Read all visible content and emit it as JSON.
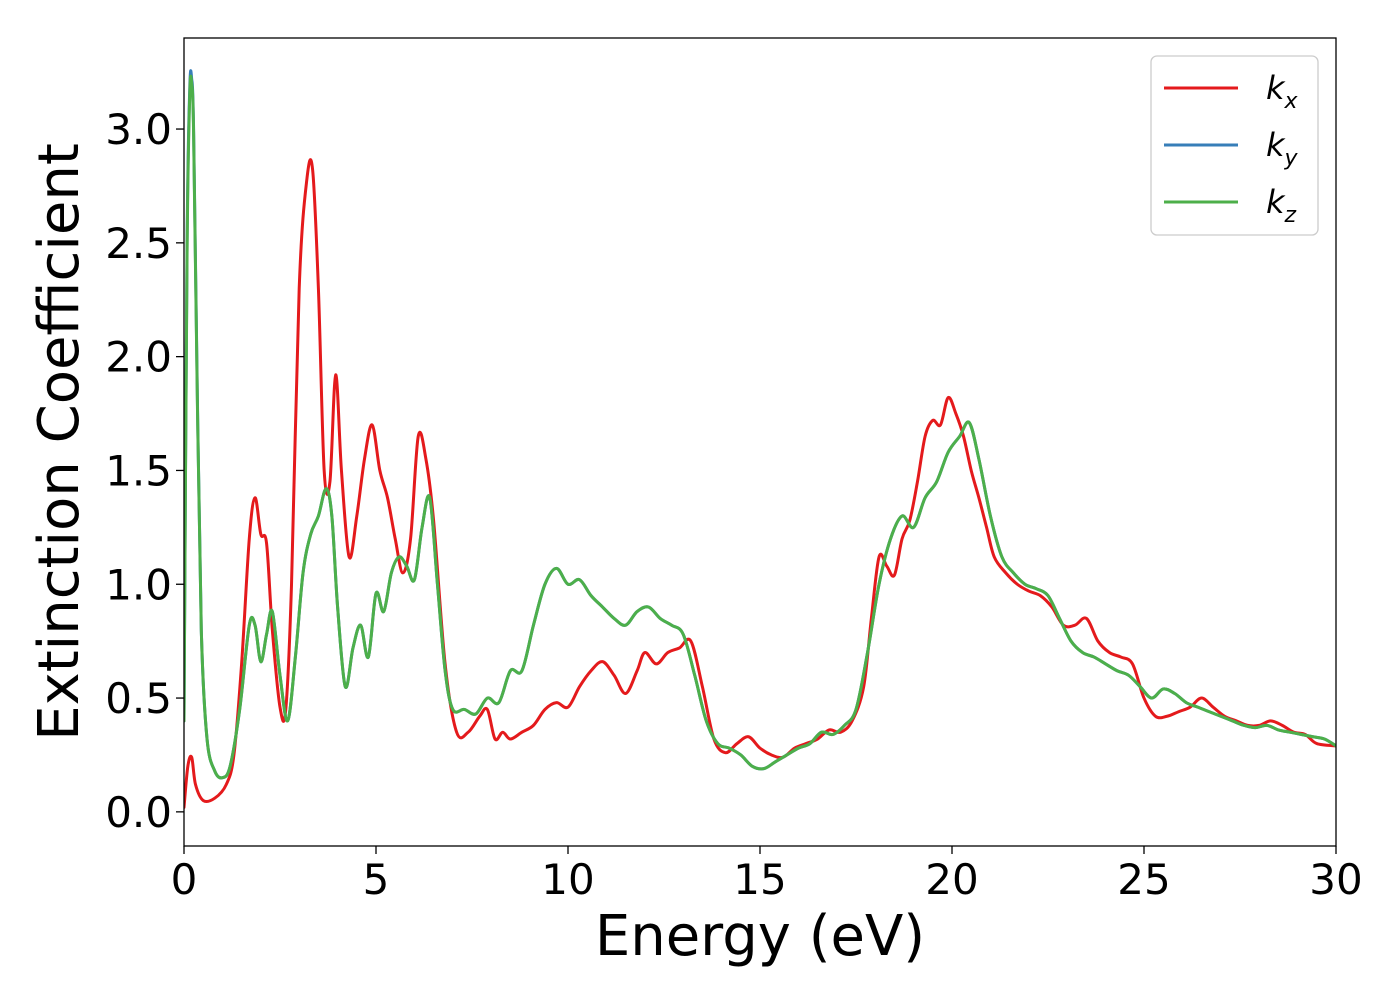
{
  "chart_data": {
    "type": "line",
    "title": "",
    "xlabel": "Energy (eV)",
    "ylabel": "Extinction Coefficient",
    "xlim": [
      0,
      30
    ],
    "ylim": [
      -0.15,
      3.4
    ],
    "xticks": [
      0,
      5,
      10,
      15,
      20,
      25,
      30
    ],
    "xtick_labels": [
      "0",
      "5",
      "10",
      "15",
      "20",
      "25",
      "30"
    ],
    "yticks": [
      0.0,
      0.5,
      1.0,
      1.5,
      2.0,
      2.5,
      3.0
    ],
    "ytick_labels": [
      "0.0",
      "0.5",
      "1.0",
      "1.5",
      "2.0",
      "2.5",
      "3.0"
    ],
    "grid": false,
    "legend_position": "top-right",
    "series": [
      {
        "name": "k_x",
        "legend_base": "k",
        "legend_sub": "x",
        "color": "#e41a1c",
        "x": [
          0.0,
          0.1,
          0.2,
          0.3,
          0.5,
          0.8,
          1.1,
          1.3,
          1.5,
          1.7,
          1.85,
          2.0,
          2.15,
          2.3,
          2.5,
          2.65,
          2.8,
          3.0,
          3.2,
          3.35,
          3.5,
          3.65,
          3.8,
          3.95,
          4.1,
          4.3,
          4.5,
          4.7,
          4.9,
          5.1,
          5.3,
          5.5,
          5.7,
          5.9,
          6.1,
          6.3,
          6.5,
          6.8,
          7.1,
          7.4,
          7.7,
          7.9,
          8.1,
          8.3,
          8.5,
          8.8,
          9.1,
          9.4,
          9.7,
          10.0,
          10.3,
          10.6,
          10.9,
          11.2,
          11.5,
          11.8,
          12.0,
          12.3,
          12.6,
          12.9,
          13.2,
          13.5,
          13.8,
          14.1,
          14.4,
          14.7,
          15.0,
          15.3,
          15.6,
          15.9,
          16.2,
          16.5,
          16.8,
          17.1,
          17.4,
          17.7,
          17.9,
          18.1,
          18.3,
          18.5,
          18.7,
          18.9,
          19.1,
          19.3,
          19.5,
          19.7,
          19.9,
          20.1,
          20.3,
          20.5,
          20.7,
          20.9,
          21.1,
          21.4,
          21.7,
          22.0,
          22.3,
          22.6,
          22.9,
          23.2,
          23.5,
          23.8,
          24.1,
          24.4,
          24.7,
          25.0,
          25.3,
          25.6,
          25.9,
          26.2,
          26.5,
          26.8,
          27.1,
          27.4,
          27.7,
          28.0,
          28.3,
          28.6,
          28.9,
          29.2,
          29.5,
          30.0
        ],
        "y": [
          0.02,
          0.2,
          0.24,
          0.12,
          0.05,
          0.06,
          0.12,
          0.25,
          0.65,
          1.2,
          1.38,
          1.22,
          1.18,
          0.8,
          0.46,
          0.45,
          1.0,
          2.3,
          2.78,
          2.82,
          2.3,
          1.5,
          1.45,
          1.92,
          1.5,
          1.12,
          1.3,
          1.55,
          1.7,
          1.5,
          1.38,
          1.2,
          1.05,
          1.2,
          1.65,
          1.55,
          1.28,
          0.65,
          0.35,
          0.35,
          0.42,
          0.45,
          0.32,
          0.35,
          0.32,
          0.35,
          0.38,
          0.45,
          0.48,
          0.46,
          0.55,
          0.62,
          0.66,
          0.6,
          0.52,
          0.62,
          0.7,
          0.65,
          0.7,
          0.72,
          0.75,
          0.55,
          0.32,
          0.26,
          0.3,
          0.33,
          0.28,
          0.25,
          0.24,
          0.28,
          0.3,
          0.32,
          0.36,
          0.35,
          0.4,
          0.55,
          0.85,
          1.12,
          1.08,
          1.04,
          1.2,
          1.28,
          1.45,
          1.65,
          1.72,
          1.7,
          1.82,
          1.75,
          1.65,
          1.5,
          1.38,
          1.25,
          1.12,
          1.05,
          1.0,
          0.97,
          0.95,
          0.9,
          0.82,
          0.82,
          0.85,
          0.75,
          0.7,
          0.68,
          0.65,
          0.5,
          0.42,
          0.42,
          0.44,
          0.46,
          0.5,
          0.46,
          0.42,
          0.4,
          0.38,
          0.38,
          0.4,
          0.38,
          0.35,
          0.34,
          0.3,
          0.29
        ]
      },
      {
        "name": "k_y",
        "legend_base": "k",
        "legend_sub": "y",
        "color": "#377eb8",
        "x": [
          0.0,
          0.08,
          0.15,
          0.2,
          0.25,
          0.35,
          0.45,
          0.6,
          0.8,
          1.0,
          1.2,
          1.45,
          1.7,
          1.85,
          2.0,
          2.15,
          2.3,
          2.5,
          2.7,
          2.9,
          3.1,
          3.3,
          3.5,
          3.7,
          3.85,
          4.0,
          4.2,
          4.4,
          4.6,
          4.8,
          5.0,
          5.2,
          5.4,
          5.6,
          5.8,
          6.0,
          6.2,
          6.4,
          6.6,
          6.8,
          7.0,
          7.3,
          7.6,
          7.9,
          8.2,
          8.5,
          8.8,
          9.1,
          9.4,
          9.7,
          10.0,
          10.3,
          10.6,
          10.9,
          11.2,
          11.5,
          11.8,
          12.1,
          12.4,
          12.7,
          13.0,
          13.3,
          13.6,
          13.9,
          14.2,
          14.5,
          14.8,
          15.1,
          15.4,
          15.7,
          16.0,
          16.3,
          16.6,
          16.9,
          17.2,
          17.5,
          17.8,
          18.1,
          18.4,
          18.7,
          19.0,
          19.3,
          19.6,
          19.9,
          20.2,
          20.45,
          20.7,
          21.0,
          21.3,
          21.6,
          21.9,
          22.2,
          22.5,
          22.8,
          23.1,
          23.4,
          23.7,
          24.0,
          24.3,
          24.6,
          24.9,
          25.2,
          25.5,
          25.8,
          26.1,
          26.4,
          26.7,
          27.0,
          27.3,
          27.6,
          27.9,
          28.2,
          28.5,
          28.8,
          29.1,
          29.4,
          29.7,
          30.0
        ],
        "y": [
          0.4,
          2.5,
          3.18,
          3.22,
          3.0,
          1.8,
          0.8,
          0.32,
          0.18,
          0.15,
          0.2,
          0.45,
          0.82,
          0.82,
          0.66,
          0.78,
          0.88,
          0.6,
          0.4,
          0.68,
          1.05,
          1.22,
          1.3,
          1.42,
          1.3,
          0.9,
          0.55,
          0.72,
          0.82,
          0.68,
          0.96,
          0.88,
          1.05,
          1.12,
          1.08,
          1.02,
          1.25,
          1.38,
          1.0,
          0.62,
          0.45,
          0.45,
          0.43,
          0.5,
          0.48,
          0.62,
          0.62,
          0.82,
          1.0,
          1.07,
          1.0,
          1.02,
          0.95,
          0.9,
          0.85,
          0.82,
          0.88,
          0.9,
          0.85,
          0.82,
          0.78,
          0.6,
          0.4,
          0.3,
          0.28,
          0.25,
          0.2,
          0.19,
          0.22,
          0.25,
          0.28,
          0.3,
          0.35,
          0.34,
          0.38,
          0.45,
          0.7,
          1.0,
          1.2,
          1.3,
          1.25,
          1.38,
          1.45,
          1.58,
          1.65,
          1.71,
          1.55,
          1.3,
          1.12,
          1.05,
          1.0,
          0.98,
          0.95,
          0.85,
          0.75,
          0.7,
          0.68,
          0.65,
          0.62,
          0.6,
          0.55,
          0.5,
          0.54,
          0.52,
          0.48,
          0.46,
          0.44,
          0.42,
          0.4,
          0.38,
          0.37,
          0.38,
          0.36,
          0.35,
          0.34,
          0.33,
          0.32,
          0.29
        ]
      },
      {
        "name": "k_z",
        "legend_base": "k",
        "legend_sub": "z",
        "color": "#4daf4a",
        "x": [
          0.0,
          0.08,
          0.15,
          0.2,
          0.25,
          0.35,
          0.45,
          0.6,
          0.8,
          1.0,
          1.2,
          1.45,
          1.7,
          1.85,
          2.0,
          2.15,
          2.3,
          2.5,
          2.7,
          2.9,
          3.1,
          3.3,
          3.5,
          3.7,
          3.85,
          4.0,
          4.2,
          4.4,
          4.6,
          4.8,
          5.0,
          5.2,
          5.4,
          5.6,
          5.8,
          6.0,
          6.2,
          6.4,
          6.6,
          6.8,
          7.0,
          7.3,
          7.6,
          7.9,
          8.2,
          8.5,
          8.8,
          9.1,
          9.4,
          9.7,
          10.0,
          10.3,
          10.6,
          10.9,
          11.2,
          11.5,
          11.8,
          12.1,
          12.4,
          12.7,
          13.0,
          13.3,
          13.6,
          13.9,
          14.2,
          14.5,
          14.8,
          15.1,
          15.4,
          15.7,
          16.0,
          16.3,
          16.6,
          16.9,
          17.2,
          17.5,
          17.8,
          18.1,
          18.4,
          18.7,
          19.0,
          19.3,
          19.6,
          19.9,
          20.2,
          20.45,
          20.7,
          21.0,
          21.3,
          21.6,
          21.9,
          22.2,
          22.5,
          22.8,
          23.1,
          23.4,
          23.7,
          24.0,
          24.3,
          24.6,
          24.9,
          25.2,
          25.5,
          25.8,
          26.1,
          26.4,
          26.7,
          27.0,
          27.3,
          27.6,
          27.9,
          28.2,
          28.5,
          28.8,
          29.1,
          29.4,
          29.7,
          30.0
        ],
        "y": [
          0.4,
          2.45,
          3.15,
          3.2,
          2.98,
          1.78,
          0.8,
          0.32,
          0.18,
          0.15,
          0.2,
          0.45,
          0.82,
          0.82,
          0.66,
          0.78,
          0.88,
          0.6,
          0.4,
          0.68,
          1.05,
          1.22,
          1.3,
          1.42,
          1.3,
          0.9,
          0.55,
          0.72,
          0.82,
          0.68,
          0.96,
          0.88,
          1.05,
          1.12,
          1.08,
          1.02,
          1.25,
          1.38,
          1.0,
          0.62,
          0.45,
          0.45,
          0.43,
          0.5,
          0.48,
          0.62,
          0.62,
          0.82,
          1.0,
          1.07,
          1.0,
          1.02,
          0.95,
          0.9,
          0.85,
          0.82,
          0.88,
          0.9,
          0.85,
          0.82,
          0.78,
          0.6,
          0.4,
          0.3,
          0.28,
          0.25,
          0.2,
          0.19,
          0.22,
          0.25,
          0.28,
          0.3,
          0.35,
          0.34,
          0.38,
          0.45,
          0.7,
          1.0,
          1.2,
          1.3,
          1.25,
          1.38,
          1.45,
          1.58,
          1.65,
          1.71,
          1.55,
          1.3,
          1.12,
          1.05,
          1.0,
          0.98,
          0.95,
          0.85,
          0.75,
          0.7,
          0.68,
          0.65,
          0.62,
          0.6,
          0.55,
          0.5,
          0.54,
          0.52,
          0.48,
          0.46,
          0.44,
          0.42,
          0.4,
          0.38,
          0.37,
          0.38,
          0.36,
          0.35,
          0.34,
          0.33,
          0.32,
          0.29
        ]
      }
    ]
  }
}
